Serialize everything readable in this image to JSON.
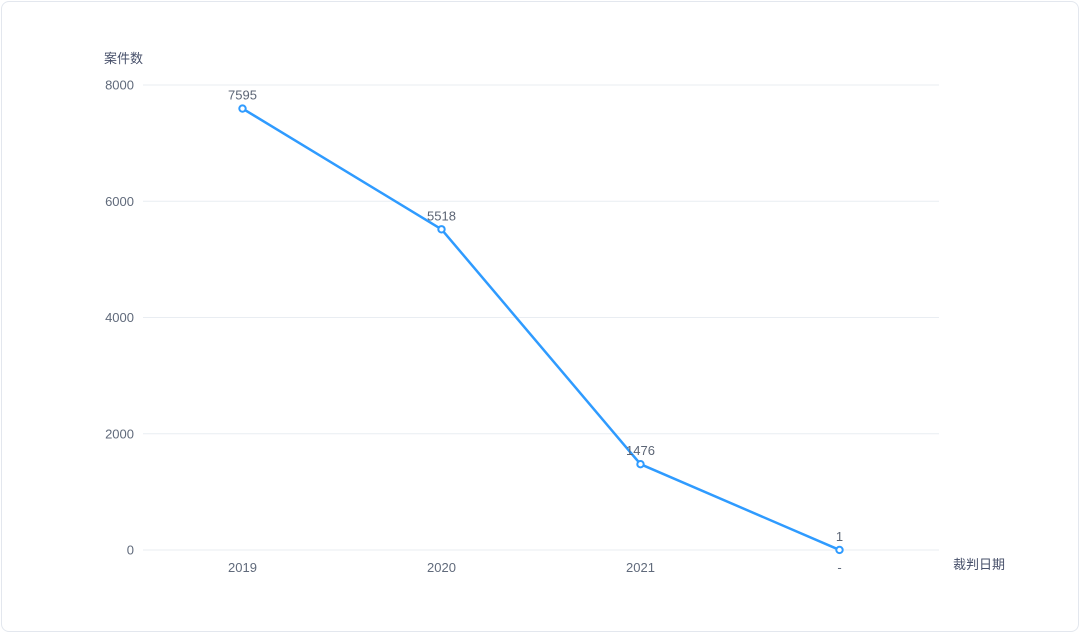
{
  "chart_data": {
    "type": "line",
    "title": "案件数",
    "xlabel": "裁判日期",
    "ylabel": "案件数",
    "categories": [
      "2019",
      "2020",
      "2021",
      "-"
    ],
    "values": [
      7595,
      5518,
      1476,
      1
    ],
    "point_labels": [
      "7595",
      "5518",
      "1476",
      "1"
    ],
    "ylim": [
      0,
      8000
    ],
    "yticks": [
      0,
      2000,
      4000,
      6000,
      8000
    ],
    "grid": true,
    "legend_position": "none",
    "colors": {
      "line": "#2f9bff",
      "marker_fill": "#ffffff",
      "gridline": "#e9edf2",
      "tick_label": "#606a7b",
      "value_label": "#5c6575",
      "axis_name": "#47506a",
      "card_border": "#e3e7ee",
      "background": "#ffffff"
    }
  },
  "axis_titles": {
    "y": "案件数",
    "x": "裁判日期"
  }
}
